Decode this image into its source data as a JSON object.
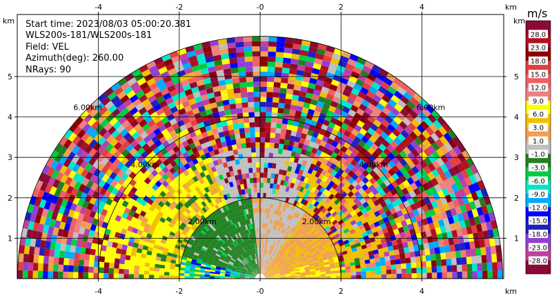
{
  "info": {
    "start_time": "Start time: 2023/08/03 05:00:20.381",
    "instrument": "WLS200s-181/WLS200s-181",
    "field": "Field: VEL",
    "azimuth": "Azimuth(deg): 260.00",
    "nrays": "NRays: 90"
  },
  "chart_data": {
    "type": "heatmap",
    "subtype": "polar RHI scan (half-disk)",
    "xlabel_unit": "km",
    "ylabel_unit": "km",
    "xlim": [
      -6.2,
      6.2
    ],
    "ylim": [
      0,
      6.0
    ],
    "x_ticks": [
      "-4",
      "-2",
      "-0",
      "2",
      "4"
    ],
    "x_tick_values": [
      -4,
      -2,
      0,
      2,
      4
    ],
    "y_ticks": [
      "1",
      "2",
      "3",
      "4",
      "5"
    ],
    "y_tick_values": [
      1,
      2,
      3,
      4,
      5
    ],
    "grid": true,
    "max_range_km": 6.0,
    "range_rings_km": [
      2,
      4,
      6
    ],
    "range_ring_labels": [
      "2.00km",
      "4.00km",
      "6.00km"
    ],
    "colorbar": {
      "unit": "m/s",
      "placement": "right",
      "labels": [
        "28.0",
        "23.0",
        "18.0",
        "15.0",
        "12.0",
        "9.0",
        "6.0",
        "3.0",
        "1.0",
        "-1.0",
        "-3.0",
        "-6.0",
        "-9.0",
        "-12.0",
        "-15.0",
        "-18.0",
        "-23.0",
        "-28.0"
      ],
      "colors": [
        "#8b0a33",
        "#b01020",
        "#8c0000",
        "#e04040",
        "#f06060",
        "#f08080",
        "#ffff00",
        "#f0c000",
        "#f0a050",
        "#c0c0c0",
        "#208020",
        "#00cc44",
        "#00e8c8",
        "#00aaff",
        "#0000ff",
        "#2020c0",
        "#9040d0",
        "#c040a0",
        "#8b0a33"
      ]
    }
  }
}
